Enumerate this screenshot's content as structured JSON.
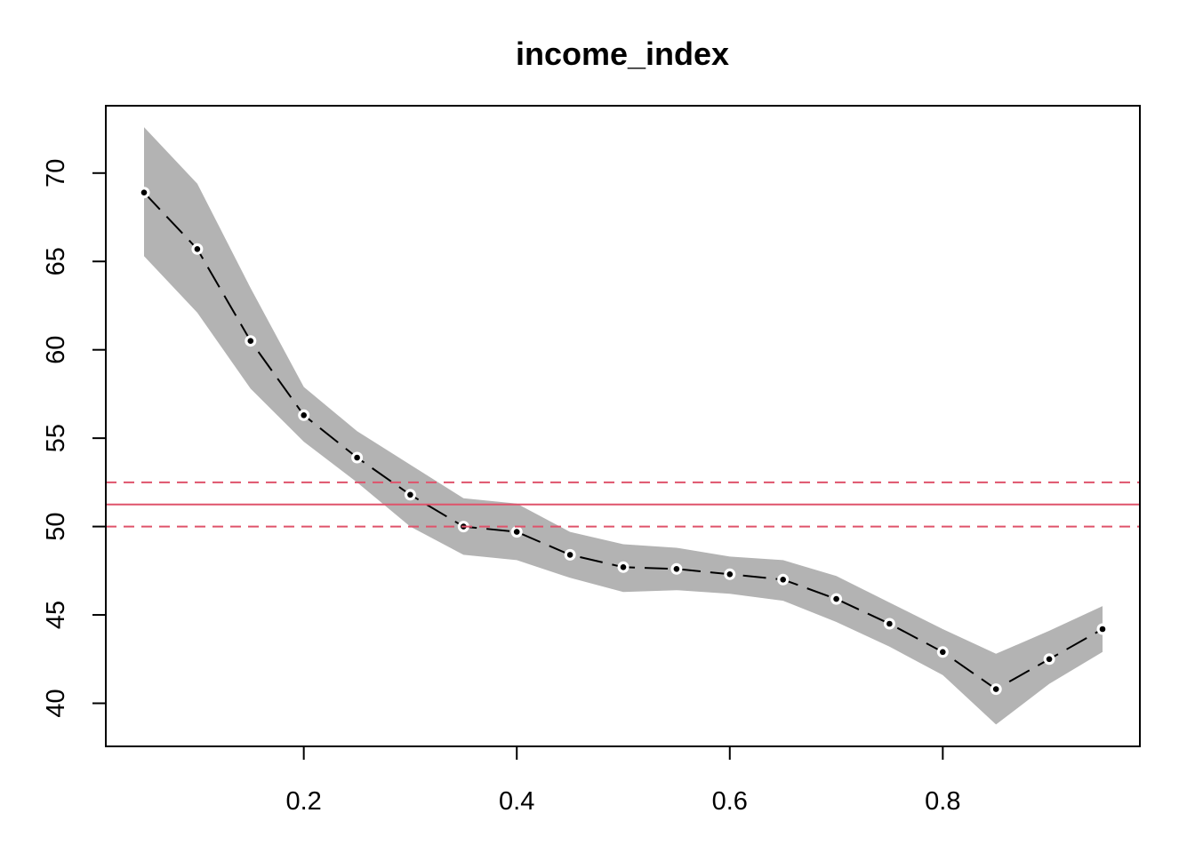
{
  "chart_data": {
    "type": "line",
    "title": "income_index",
    "xlabel": "",
    "ylabel": "",
    "xlim": [
      0.05,
      0.95
    ],
    "ylim": [
      40,
      72
    ],
    "x_ticks": [
      0.2,
      0.4,
      0.6,
      0.8
    ],
    "x_tick_labels": [
      "0.2",
      "0.4",
      "0.6",
      "0.8"
    ],
    "y_ticks": [
      40,
      45,
      50,
      55,
      60,
      65,
      70
    ],
    "y_tick_labels": [
      "40",
      "45",
      "50",
      "55",
      "60",
      "65",
      "70"
    ],
    "grid": false,
    "legend": "none",
    "series": [
      {
        "style": "dashed-line-with-points",
        "color": "#000000",
        "x": [
          0.05,
          0.1,
          0.15,
          0.2,
          0.25,
          0.3,
          0.35,
          0.4,
          0.45,
          0.5,
          0.55,
          0.6,
          0.65,
          0.7,
          0.75,
          0.8,
          0.85,
          0.9,
          0.95
        ],
        "y": [
          68.9,
          65.7,
          60.5,
          56.3,
          53.9,
          51.8,
          50.0,
          49.7,
          48.4,
          47.7,
          47.6,
          47.3,
          47.0,
          45.9,
          44.5,
          42.9,
          40.8,
          42.5,
          44.2
        ],
        "lower": [
          65.3,
          62.1,
          57.8,
          54.8,
          52.5,
          50.0,
          48.4,
          48.1,
          47.1,
          46.3,
          46.4,
          46.2,
          45.8,
          44.6,
          43.2,
          41.6,
          38.8,
          41.1,
          42.9
        ],
        "upper": [
          72.6,
          69.4,
          63.5,
          57.9,
          55.4,
          53.5,
          51.6,
          51.3,
          49.7,
          49.0,
          48.8,
          48.3,
          48.1,
          47.2,
          45.7,
          44.2,
          42.8,
          44.1,
          45.5
        ]
      }
    ],
    "band_color": "#b3b3b3",
    "reference_lines": [
      {
        "y": 51.25,
        "style": "solid",
        "color": "#df536b"
      },
      {
        "y": 52.5,
        "style": "dashed",
        "color": "#df536b"
      },
      {
        "y": 50.0,
        "style": "dashed",
        "color": "#df536b"
      }
    ]
  }
}
